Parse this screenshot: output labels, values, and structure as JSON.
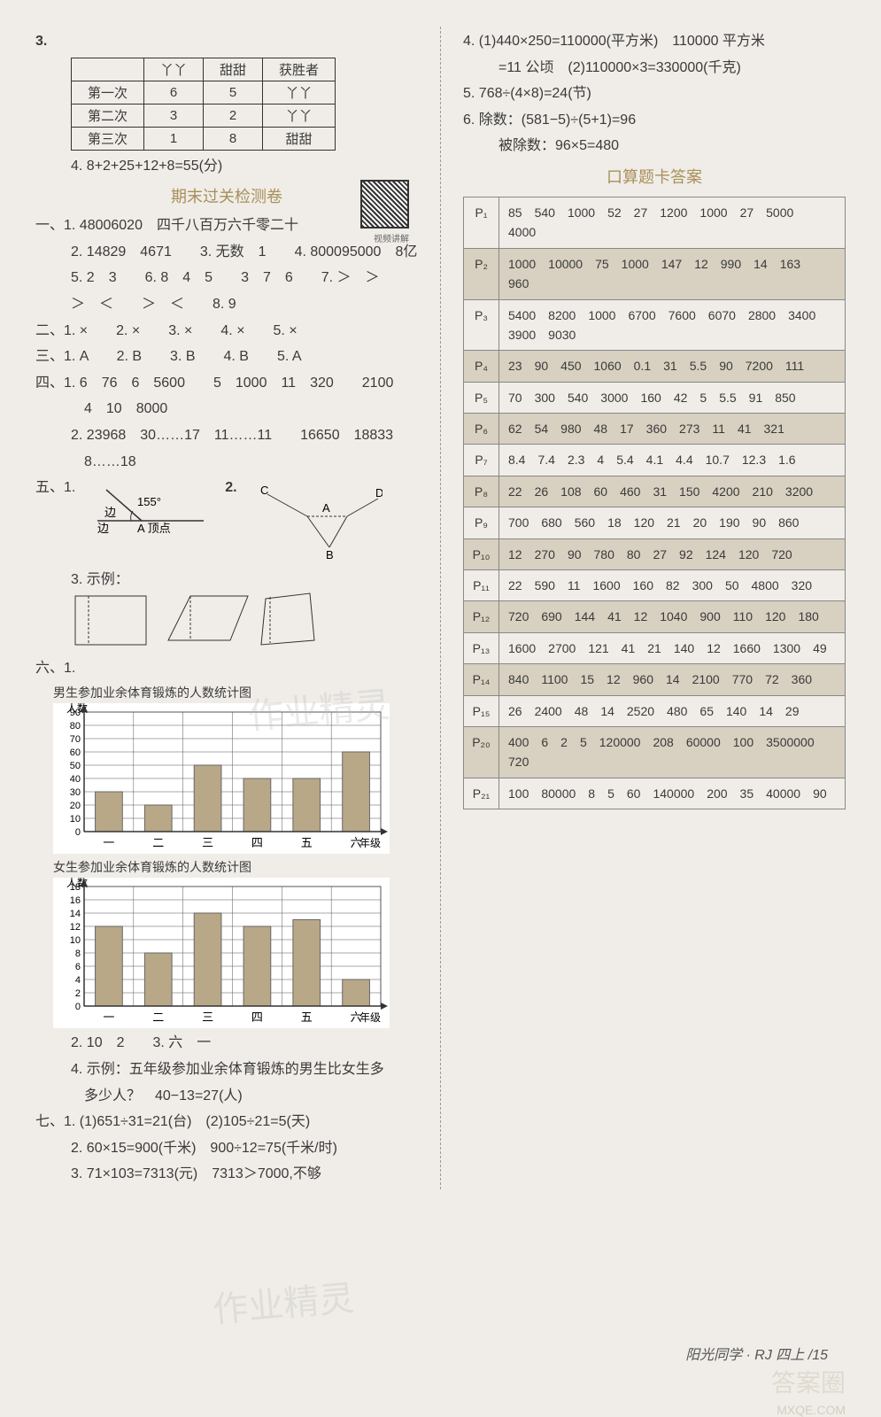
{
  "left": {
    "q3_table": {
      "headers": [
        "",
        "丫丫",
        "甜甜",
        "获胜者"
      ],
      "rows": [
        [
          "第一次",
          "6",
          "5",
          "丫丫"
        ],
        [
          "第二次",
          "3",
          "2",
          "丫丫"
        ],
        [
          "第三次",
          "1",
          "8",
          "甜甜"
        ]
      ]
    },
    "q4": "4. 8+2+25+12+8=55(分)",
    "title_exam": "期末过关检测卷",
    "qr_label": "视频讲解",
    "sec1": {
      "l1": "一、1. 48006020　四千八百万六千零二十",
      "l2": "2. 14829　4671　　3. 无数　1　　4. 800095000　8亿",
      "l3": "5. 2　3　　6. 8　4　5　　3　7　6　　7. ＞　＞",
      "l4": "＞　＜　　＞　＜　　8. 9"
    },
    "sec2": "二、1. ×　　2. ×　　3. ×　　4. ×　　5. ×",
    "sec3": "三、1. A　　2. B　　3. B　　4. B　　5. A",
    "sec4": {
      "l1": "四、1. 6　76　6　5600　　5　1000　11　320　　2100",
      "l2": "4　10　8000",
      "l3": "2. 23968　30……17　11……11　　16650　18833",
      "l4": "8……18"
    },
    "sec5_label": "五、1.",
    "angle_val": "155°",
    "angle_labels": {
      "edge": "边",
      "vertex": "顶点",
      "A": "A",
      "B": "B",
      "C": "C",
      "D": "D"
    },
    "q5_3": "3. 示例：",
    "sec6_label": "六、1.",
    "chart1": {
      "title": "男生参加业余体育锻炼的人数统计图",
      "ylabel": "人数",
      "ylim": [
        0,
        90
      ],
      "ytick": 10,
      "categories": [
        "一",
        "二",
        "三",
        "四",
        "五",
        "六"
      ],
      "xlabel_suffix": "年级",
      "values": [
        30,
        20,
        50,
        40,
        40,
        60
      ],
      "bar_color": "#b8a888",
      "grid_color": "#555",
      "bg": "#ffffff"
    },
    "chart2": {
      "title": "女生参加业余体育锻炼的人数统计图",
      "ylabel": "人数",
      "ylim": [
        0,
        18
      ],
      "ytick": 2,
      "categories": [
        "一",
        "二",
        "三",
        "四",
        "五",
        "六"
      ],
      "xlabel_suffix": "年级",
      "values": [
        12,
        8,
        14,
        12,
        13,
        4
      ],
      "bar_color": "#b8a888",
      "grid_color": "#555",
      "bg": "#ffffff"
    },
    "q6_2": "2. 10　2　　3. 六　一",
    "q6_4a": "4. 示例：五年级参加业余体育锻炼的男生比女生多",
    "q6_4b": "多少人？　40−13=27(人)",
    "sec7": {
      "l1": "七、1. (1)651÷31=21(台)　(2)105÷21=5(天)",
      "l2": "2. 60×15=900(千米)　900÷12=75(千米/时)",
      "l3": "3. 71×103=7313(元)　7313＞7000,不够"
    }
  },
  "right": {
    "top": {
      "l1": "4. (1)440×250=110000(平方米)　110000 平方米",
      "l2": "=11 公顷　(2)110000×3=330000(千克)",
      "l3": "5. 768÷(4×8)=24(节)",
      "l4": "6. 除数：(581−5)÷(5+1)=96",
      "l5": "被除数：96×5=480"
    },
    "koushuan_title": "口算题卡答案",
    "pages": [
      {
        "p": "P₁",
        "vals": [
          "85",
          "540",
          "1000",
          "52",
          "27",
          "1200",
          "1000",
          "27",
          "5000",
          "4000"
        ]
      },
      {
        "p": "P₂",
        "vals": [
          "1000",
          "10000",
          "75",
          "1000",
          "147",
          "12",
          "990",
          "14",
          "163",
          "960"
        ]
      },
      {
        "p": "P₃",
        "vals": [
          "5400",
          "8200",
          "1000",
          "6700",
          "7600",
          "6070",
          "2800",
          "3400",
          "3900",
          "9030"
        ]
      },
      {
        "p": "P₄",
        "vals": [
          "23",
          "90",
          "450",
          "1060",
          "0.1",
          "31",
          "5.5",
          "90",
          "7200",
          "111"
        ]
      },
      {
        "p": "P₅",
        "vals": [
          "70",
          "300",
          "540",
          "3000",
          "160",
          "42",
          "5",
          "5.5",
          "91",
          "850"
        ]
      },
      {
        "p": "P₆",
        "vals": [
          "62",
          "54",
          "980",
          "48",
          "17",
          "360",
          "273",
          "11",
          "41",
          "321"
        ]
      },
      {
        "p": "P₇",
        "vals": [
          "8.4",
          "7.4",
          "2.3",
          "4",
          "5.4",
          "4.1",
          "4.4",
          "10.7",
          "12.3",
          "1.6"
        ]
      },
      {
        "p": "P₈",
        "vals": [
          "22",
          "26",
          "108",
          "60",
          "460",
          "31",
          "150",
          "4200",
          "210",
          "3200"
        ]
      },
      {
        "p": "P₉",
        "vals": [
          "700",
          "680",
          "560",
          "18",
          "120",
          "21",
          "20",
          "190",
          "90",
          "860"
        ]
      },
      {
        "p": "P₁₀",
        "vals": [
          "12",
          "270",
          "90",
          "780",
          "80",
          "27",
          "92",
          "124",
          "120",
          "720"
        ]
      },
      {
        "p": "P₁₁",
        "vals": [
          "22",
          "590",
          "11",
          "1600",
          "160",
          "82",
          "300",
          "50",
          "4800",
          "320"
        ]
      },
      {
        "p": "P₁₂",
        "vals": [
          "720",
          "690",
          "144",
          "41",
          "12",
          "1040",
          "900",
          "110",
          "120",
          "180"
        ]
      },
      {
        "p": "P₁₃",
        "vals": [
          "1600",
          "2700",
          "121",
          "41",
          "21",
          "140",
          "12",
          "1660",
          "1300",
          "49"
        ]
      },
      {
        "p": "P₁₄",
        "vals": [
          "840",
          "1100",
          "15",
          "12",
          "960",
          "14",
          "2100",
          "770",
          "72",
          "360"
        ]
      },
      {
        "p": "P₁₅",
        "vals": [
          "26",
          "2400",
          "48",
          "14",
          "2520",
          "480",
          "65",
          "140",
          "14",
          "29"
        ]
      },
      {
        "p": "P₂₀",
        "vals": [
          "400",
          "6",
          "2",
          "5",
          "120000",
          "208",
          "60000",
          "100",
          "3500000",
          "720"
        ]
      },
      {
        "p": "P₂₁",
        "vals": [
          "100",
          "80000",
          "8",
          "5",
          "60",
          "140000",
          "200",
          "35",
          "40000",
          "90"
        ]
      }
    ]
  },
  "footer": "阳光同学 · RJ 四上 /15",
  "watermark_big": "答案圈",
  "watermark_small": "MXQE.COM"
}
